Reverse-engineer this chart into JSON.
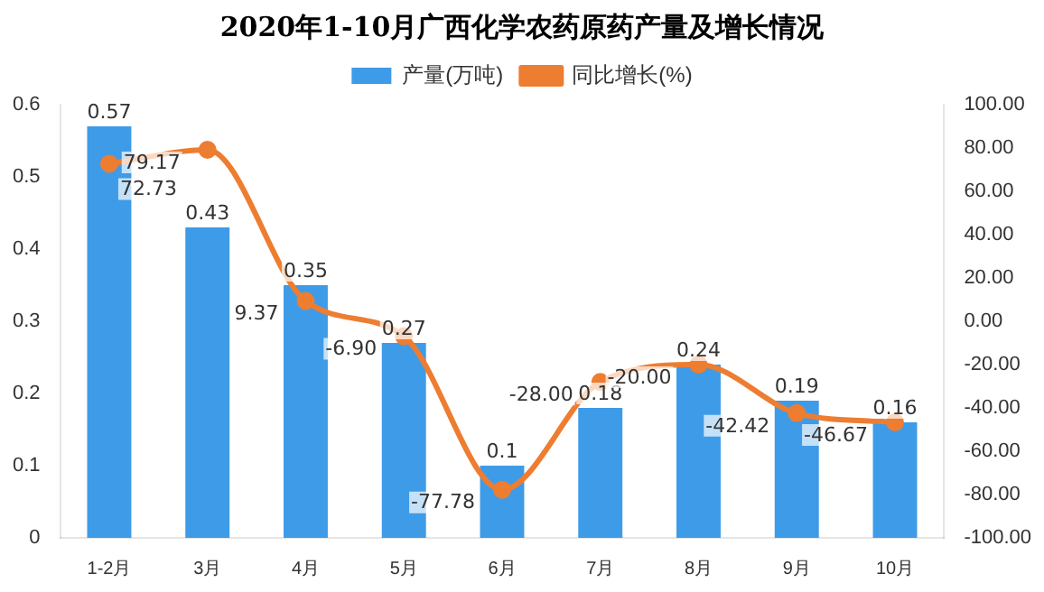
{
  "chart_data": {
    "type": "bar",
    "title": "2020年1-10月广西化学农药原药产量及增长情况",
    "categories": [
      "1-2月",
      "3月",
      "4月",
      "5月",
      "6月",
      "7月",
      "8月",
      "9月",
      "10月"
    ],
    "series": [
      {
        "name": "产量(万吨)",
        "color": "#3e9be8",
        "values": [
          0.57,
          0.43,
          0.35,
          0.27,
          0.1,
          0.18,
          0.24,
          0.19,
          0.16
        ],
        "value_labels": [
          "0.57",
          "0.43",
          "0.35",
          "0.27",
          "0.1",
          "0.18",
          "0.24",
          "0.19",
          "0.16"
        ]
      },
      {
        "name": "同比增长(%)",
        "type": "line",
        "axis": "y2",
        "color": "#ed7d31",
        "values": [
          72.73,
          79.17,
          9.37,
          -6.9,
          -77.78,
          -28.0,
          -20.0,
          -42.42,
          -46.67
        ],
        "value_labels": [
          "72.73",
          "79.17",
          "9.37",
          "-6.90",
          "-77.78",
          "-28.00",
          "-20.00",
          "-42.42",
          "-46.67"
        ]
      }
    ],
    "ylim": [
      0,
      0.6
    ],
    "yticks": [
      0,
      0.1,
      0.2,
      0.3,
      0.4,
      0.5,
      0.6
    ],
    "y2lim": [
      -100,
      100
    ],
    "y2ticks": [
      {
        "value": -100,
        "label": "-100.00"
      },
      {
        "value": -80,
        "label": "-80.00"
      },
      {
        "value": -60,
        "label": "-60.00"
      },
      {
        "value": -40,
        "label": "-40.00"
      },
      {
        "value": -20,
        "label": "-20.00"
      },
      {
        "value": 0,
        "label": "0.00"
      },
      {
        "value": 20,
        "label": "20.00"
      },
      {
        "value": 40,
        "label": "40.00"
      },
      {
        "value": 60,
        "label": "60.00"
      },
      {
        "value": 80,
        "label": "80.00"
      },
      {
        "value": 100,
        "label": "100.00"
      }
    ],
    "legend": "top",
    "marker": "circle",
    "grid": false
  }
}
